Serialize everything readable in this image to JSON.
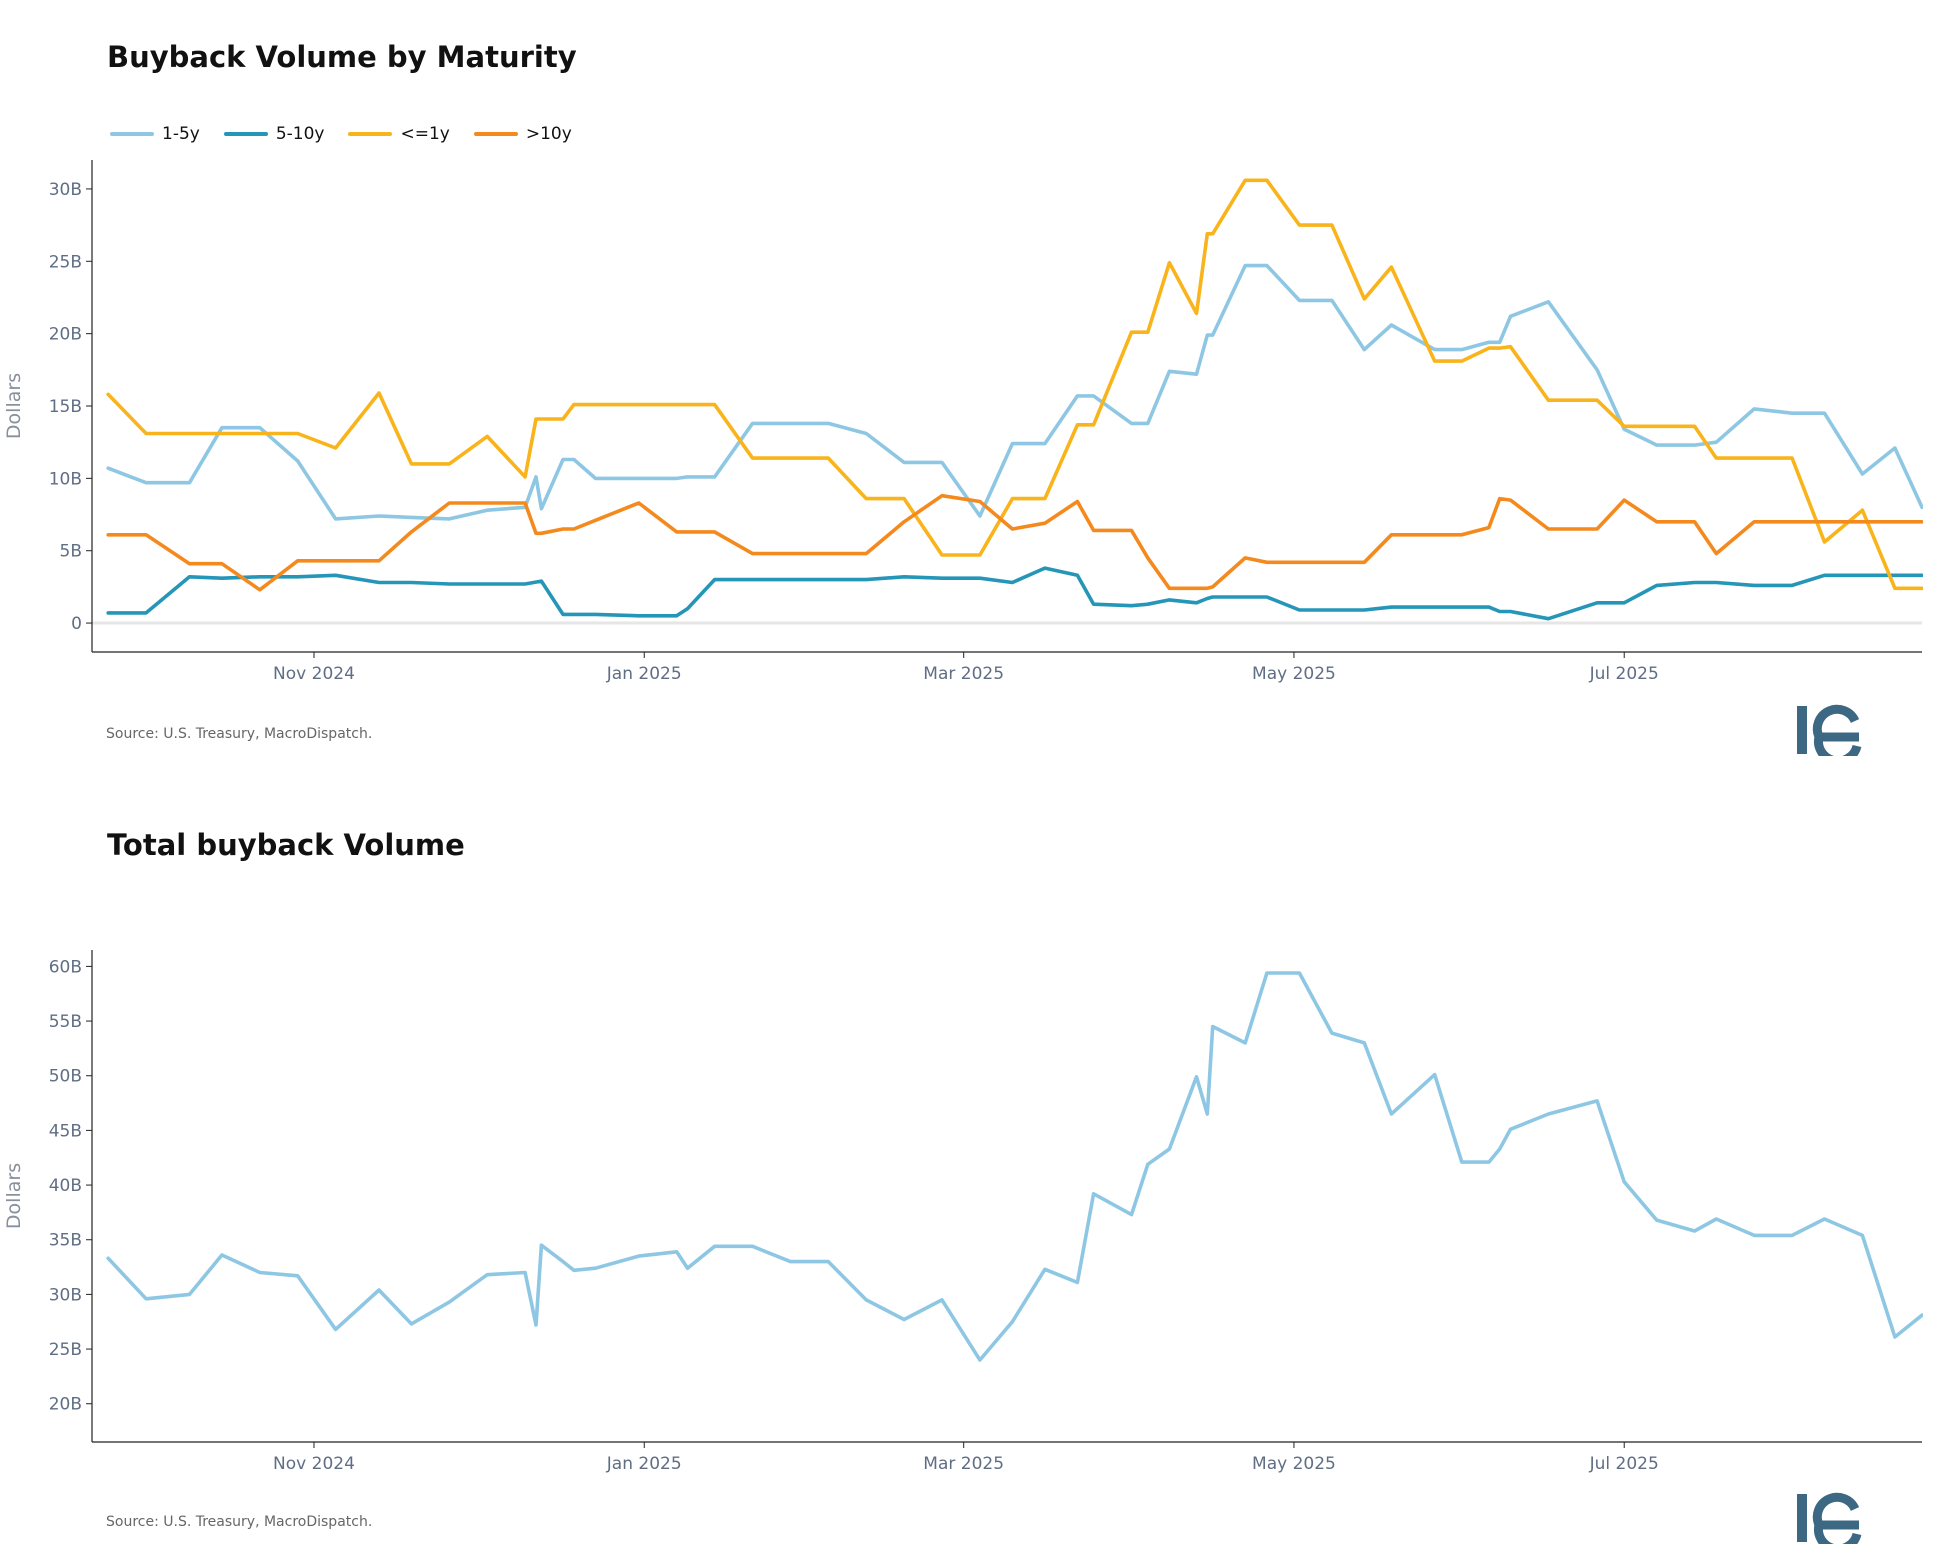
{
  "x_ticks": [
    "Nov 2024",
    "Jan 2025",
    "Mar 2025",
    "May 2025",
    "Jul 2025"
  ],
  "logo_text": "ie",
  "colors": {
    "light_blue": "#8ec7e3",
    "teal": "#2596b8",
    "yellow": "#f9b41b",
    "orange": "#f48a1d",
    "axis": "#222222",
    "zero_line": "#e6e6e6",
    "logo": "#3c6884"
  },
  "panels": [
    {
      "title": "Buyback Volume by Maturity",
      "source": "Source: U.S. Treasury, MacroDispatch.",
      "chart_data": {
        "type": "line",
        "title": "Buyback Volume by Maturity",
        "ylabel": "Dollars",
        "ylim": [
          -2,
          32
        ],
        "y_ticks": [
          0,
          5,
          10,
          15,
          20,
          25,
          30
        ],
        "y_tick_labels": [
          "0",
          "5B",
          "10B",
          "15B",
          "20B",
          "25B",
          "30B"
        ],
        "x_ticks": [
          "2024-11-01",
          "2025-01-01",
          "2025-03-01",
          "2025-05-01",
          "2025-07-01"
        ],
        "x_range": [
          "2024-09-21",
          "2025-08-25"
        ],
        "legend_position": "top-left",
        "series": [
          {
            "name": "1-5y",
            "color": "#8ec7e3",
            "x": [
              "2024-09-24",
              "2024-10-01",
              "2024-10-09",
              "2024-10-15",
              "2024-10-22",
              "2024-10-29",
              "2024-11-05",
              "2024-11-13",
              "2024-11-19",
              "2024-11-26",
              "2024-12-03",
              "2024-12-10",
              "2024-12-12",
              "2024-12-13",
              "2024-12-17",
              "2024-12-19",
              "2024-12-23",
              "2024-12-31",
              "2025-01-07",
              "2025-01-09",
              "2025-01-14",
              "2025-01-21",
              "2025-01-28",
              "2025-02-04",
              "2025-02-11",
              "2025-02-18",
              "2025-02-25",
              "2025-03-04",
              "2025-03-10",
              "2025-03-16",
              "2025-03-22",
              "2025-03-25",
              "2025-04-01",
              "2025-04-04",
              "2025-04-08",
              "2025-04-13",
              "2025-04-15",
              "2025-04-16",
              "2025-04-22",
              "2025-04-26",
              "2025-05-02",
              "2025-05-08",
              "2025-05-14",
              "2025-05-19",
              "2025-05-27",
              "2025-06-01",
              "2025-06-06",
              "2025-06-08",
              "2025-06-10",
              "2025-06-17",
              "2025-06-26",
              "2025-07-01",
              "2025-07-07",
              "2025-07-14",
              "2025-07-18",
              "2025-07-25",
              "2025-08-01",
              "2025-08-07",
              "2025-08-14",
              "2025-08-20",
              "2025-08-25"
            ],
            "values": [
              10.7,
              9.7,
              9.7,
              13.5,
              13.5,
              11.2,
              7.2,
              7.4,
              7.3,
              7.2,
              7.8,
              8.0,
              10.1,
              7.9,
              11.3,
              11.3,
              10.0,
              10.0,
              10.0,
              10.1,
              10.1,
              13.8,
              13.8,
              13.8,
              13.1,
              11.1,
              11.1,
              7.4,
              12.4,
              12.4,
              15.7,
              15.7,
              13.8,
              13.8,
              17.4,
              17.2,
              19.9,
              19.9,
              24.7,
              24.7,
              22.3,
              22.3,
              18.9,
              20.6,
              18.9,
              18.9,
              19.4,
              19.4,
              21.2,
              22.2,
              17.5,
              13.4,
              12.3,
              12.3,
              12.5,
              14.8,
              14.5,
              14.5,
              10.3,
              12.1,
              8.0
            ]
          },
          {
            "name": "5-10y",
            "color": "#2596b8",
            "x": [
              "2024-09-24",
              "2024-10-01",
              "2024-10-09",
              "2024-10-15",
              "2024-10-22",
              "2024-10-29",
              "2024-11-05",
              "2024-11-13",
              "2024-11-19",
              "2024-11-26",
              "2024-12-03",
              "2024-12-10",
              "2024-12-13",
              "2024-12-17",
              "2024-12-23",
              "2024-12-31",
              "2025-01-07",
              "2025-01-09",
              "2025-01-14",
              "2025-01-21",
              "2025-01-28",
              "2025-02-04",
              "2025-02-11",
              "2025-02-18",
              "2025-02-25",
              "2025-03-04",
              "2025-03-10",
              "2025-03-16",
              "2025-03-22",
              "2025-03-25",
              "2025-04-01",
              "2025-04-04",
              "2025-04-08",
              "2025-04-13",
              "2025-04-15",
              "2025-04-16",
              "2025-04-22",
              "2025-04-26",
              "2025-05-02",
              "2025-05-08",
              "2025-05-14",
              "2025-05-19",
              "2025-05-27",
              "2025-06-01",
              "2025-06-06",
              "2025-06-08",
              "2025-06-10",
              "2025-06-17",
              "2025-06-26",
              "2025-07-01",
              "2025-07-07",
              "2025-07-14",
              "2025-07-18",
              "2025-07-25",
              "2025-08-01",
              "2025-08-07",
              "2025-08-14",
              "2025-08-20",
              "2025-08-25"
            ],
            "values": [
              0.7,
              0.7,
              3.2,
              3.1,
              3.2,
              3.2,
              3.3,
              2.8,
              2.8,
              2.7,
              2.7,
              2.7,
              2.9,
              0.6,
              0.6,
              0.5,
              0.5,
              1.0,
              3.0,
              3.0,
              3.0,
              3.0,
              3.0,
              3.2,
              3.1,
              3.1,
              2.8,
              3.8,
              3.3,
              1.3,
              1.2,
              1.3,
              1.6,
              1.4,
              1.7,
              1.8,
              1.8,
              1.8,
              0.9,
              0.9,
              0.9,
              1.1,
              1.1,
              1.1,
              1.1,
              0.8,
              0.8,
              0.3,
              1.4,
              1.4,
              2.6,
              2.8,
              2.8,
              2.6,
              2.6,
              3.3,
              3.3,
              3.3,
              3.3
            ]
          },
          {
            "name": "<=1y",
            "color": "#f9b41b",
            "x": [
              "2024-09-24",
              "2024-10-01",
              "2024-10-15",
              "2024-10-22",
              "2024-10-29",
              "2024-11-05",
              "2024-11-13",
              "2024-11-19",
              "2024-11-26",
              "2024-12-03",
              "2024-12-10",
              "2024-12-12",
              "2024-12-13",
              "2024-12-17",
              "2024-12-19",
              "2024-12-23",
              "2024-12-31",
              "2025-01-07",
              "2025-01-09",
              "2025-01-14",
              "2025-01-21",
              "2025-01-28",
              "2025-02-04",
              "2025-02-11",
              "2025-02-18",
              "2025-02-25",
              "2025-03-04",
              "2025-03-10",
              "2025-03-16",
              "2025-03-22",
              "2025-03-25",
              "2025-04-01",
              "2025-04-04",
              "2025-04-08",
              "2025-04-13",
              "2025-04-15",
              "2025-04-16",
              "2025-04-22",
              "2025-04-26",
              "2025-05-02",
              "2025-05-08",
              "2025-05-14",
              "2025-05-19",
              "2025-05-27",
              "2025-06-01",
              "2025-06-06",
              "2025-06-08",
              "2025-06-10",
              "2025-06-17",
              "2025-06-26",
              "2025-07-01",
              "2025-07-07",
              "2025-07-14",
              "2025-07-18",
              "2025-07-25",
              "2025-08-01",
              "2025-08-07",
              "2025-08-14",
              "2025-08-20",
              "2025-08-25"
            ],
            "values": [
              15.8,
              13.1,
              13.1,
              13.1,
              13.1,
              12.1,
              15.9,
              11.0,
              11.0,
              12.9,
              10.1,
              14.1,
              14.1,
              14.1,
              15.1,
              15.1,
              15.1,
              15.1,
              15.1,
              15.1,
              11.4,
              11.4,
              11.4,
              8.6,
              8.6,
              4.7,
              4.7,
              8.6,
              8.6,
              13.7,
              13.7,
              20.1,
              20.1,
              24.9,
              21.4,
              26.9,
              26.9,
              30.6,
              30.6,
              27.5,
              27.5,
              22.4,
              24.6,
              18.1,
              18.1,
              19.0,
              19.0,
              19.1,
              15.4,
              15.4,
              13.6,
              13.6,
              13.6,
              11.4,
              11.4,
              11.4,
              5.6,
              7.8,
              2.4,
              2.4
            ]
          },
          {
            "name": ">10y",
            "color": "#f48a1d",
            "x": [
              "2024-09-24",
              "2024-10-01",
              "2024-10-09",
              "2024-10-15",
              "2024-10-22",
              "2024-10-29",
              "2024-11-05",
              "2024-11-13",
              "2024-11-19",
              "2024-11-26",
              "2024-12-03",
              "2024-12-10",
              "2024-12-12",
              "2024-12-13",
              "2024-12-17",
              "2024-12-19",
              "2024-12-23",
              "2024-12-31",
              "2025-01-07",
              "2025-01-09",
              "2025-01-14",
              "2025-01-21",
              "2025-01-28",
              "2025-02-04",
              "2025-02-11",
              "2025-02-18",
              "2025-02-25",
              "2025-03-04",
              "2025-03-10",
              "2025-03-16",
              "2025-03-22",
              "2025-03-25",
              "2025-04-01",
              "2025-04-04",
              "2025-04-08",
              "2025-04-13",
              "2025-04-15",
              "2025-04-16",
              "2025-04-22",
              "2025-04-26",
              "2025-05-02",
              "2025-05-08",
              "2025-05-14",
              "2025-05-19",
              "2025-05-27",
              "2025-06-01",
              "2025-06-06",
              "2025-06-08",
              "2025-06-10",
              "2025-06-17",
              "2025-06-26",
              "2025-07-01",
              "2025-07-07",
              "2025-07-14",
              "2025-07-18",
              "2025-07-25",
              "2025-08-01",
              "2025-08-07",
              "2025-08-14",
              "2025-08-20",
              "2025-08-25"
            ],
            "values": [
              6.1,
              6.1,
              4.1,
              4.1,
              2.3,
              4.3,
              4.3,
              4.3,
              6.3,
              8.3,
              8.3,
              8.3,
              6.2,
              6.2,
              6.5,
              6.5,
              7.1,
              8.3,
              6.3,
              6.3,
              6.3,
              4.8,
              4.8,
              4.8,
              4.8,
              7.0,
              8.8,
              8.4,
              6.5,
              6.9,
              8.4,
              6.4,
              6.4,
              4.5,
              2.4,
              2.4,
              2.4,
              2.5,
              4.5,
              4.2,
              4.2,
              4.2,
              4.2,
              6.1,
              6.1,
              6.1,
              6.6,
              8.6,
              8.5,
              6.5,
              6.5,
              8.5,
              7.0,
              7.0,
              4.8,
              7.0,
              7.0,
              7.0,
              7.0,
              7.0,
              7.0
            ]
          }
        ]
      }
    },
    {
      "title": "Total buyback Volume",
      "source": "Source: U.S. Treasury, MacroDispatch.",
      "chart_data": {
        "type": "line",
        "title": "Total buyback Volume",
        "ylabel": "Dollars",
        "ylim": [
          16.5,
          61.5
        ],
        "y_ticks": [
          20,
          25,
          30,
          35,
          40,
          45,
          50,
          55,
          60
        ],
        "y_tick_labels": [
          "20B",
          "25B",
          "30B",
          "35B",
          "40B",
          "45B",
          "50B",
          "55B",
          "60B"
        ],
        "x_ticks": [
          "2024-11-01",
          "2025-01-01",
          "2025-03-01",
          "2025-05-01",
          "2025-07-01"
        ],
        "x_range": [
          "2024-09-21",
          "2025-08-25"
        ],
        "series": [
          {
            "color": "#8ec7e3",
            "x": [
              "2024-09-24",
              "2024-10-01",
              "2024-10-09",
              "2024-10-15",
              "2024-10-22",
              "2024-10-29",
              "2024-11-05",
              "2024-11-13",
              "2024-11-19",
              "2024-11-26",
              "2024-12-03",
              "2024-12-10",
              "2024-12-12",
              "2024-12-13",
              "2024-12-17",
              "2024-12-19",
              "2024-12-23",
              "2024-12-31",
              "2025-01-07",
              "2025-01-09",
              "2025-01-14",
              "2025-01-21",
              "2025-01-28",
              "2025-02-04",
              "2025-02-11",
              "2025-02-18",
              "2025-02-25",
              "2025-03-04",
              "2025-03-10",
              "2025-03-16",
              "2025-03-22",
              "2025-03-25",
              "2025-04-01",
              "2025-04-04",
              "2025-04-08",
              "2025-04-13",
              "2025-04-15",
              "2025-04-16",
              "2025-04-22",
              "2025-04-26",
              "2025-05-02",
              "2025-05-08",
              "2025-05-14",
              "2025-05-19",
              "2025-05-27",
              "2025-06-01",
              "2025-06-06",
              "2025-06-08",
              "2025-06-10",
              "2025-06-17",
              "2025-06-26",
              "2025-07-01",
              "2025-07-07",
              "2025-07-14",
              "2025-07-18",
              "2025-07-25",
              "2025-08-01",
              "2025-08-07",
              "2025-08-14",
              "2025-08-20",
              "2025-08-25"
            ],
            "values": [
              33.3,
              29.6,
              30.0,
              33.6,
              32.0,
              31.7,
              26.8,
              30.4,
              27.3,
              29.3,
              31.8,
              32.0,
              27.2,
              34.5,
              33.0,
              32.2,
              32.4,
              33.5,
              33.9,
              32.4,
              34.4,
              34.4,
              33.0,
              33.0,
              29.5,
              27.7,
              29.5,
              24.0,
              27.5,
              32.3,
              31.1,
              39.2,
              37.3,
              41.9,
              43.3,
              49.9,
              46.5,
              54.5,
              53.0,
              59.4,
              59.4,
              53.9,
              53.0,
              46.5,
              50.1,
              42.1,
              42.1,
              43.3,
              45.1,
              46.5,
              47.7,
              40.3,
              36.8,
              35.8,
              36.9,
              35.4,
              35.4,
              36.9,
              35.4,
              26.1,
              28.1
            ]
          }
        ]
      }
    }
  ]
}
